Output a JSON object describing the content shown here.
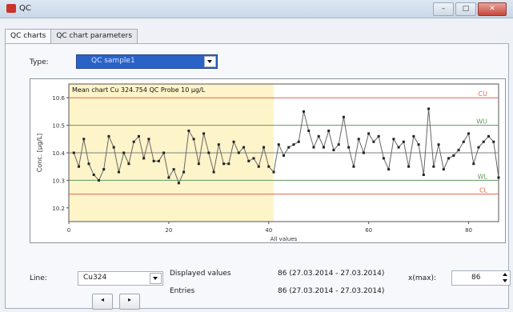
{
  "window": {
    "title": "QC"
  },
  "tabs": [
    {
      "label": "QC charts",
      "active": true
    },
    {
      "label": "QC chart parameters",
      "active": false
    }
  ],
  "type_field": {
    "label": "Type:",
    "value": "QC sample1"
  },
  "chart_data": {
    "type": "line",
    "title": "Mean chart Cu 324.754 QC Probe 10 µg/L",
    "xlabel": "All values",
    "ylabel": "Conc. [µg/L]",
    "xlim": [
      0,
      86
    ],
    "ylim": [
      10.15,
      10.65
    ],
    "x_ticks": [
      "0",
      "20",
      "40",
      "60",
      "80"
    ],
    "y_ticks": [
      "10.6",
      "10.5",
      "10.4",
      "10.3",
      "10.2"
    ],
    "y_tick_values": [
      10.6,
      10.5,
      10.4,
      10.3,
      10.2
    ],
    "highlight_region": {
      "x_from": 0,
      "x_to": 41,
      "color": "#fdf4c9"
    },
    "control_lines": [
      {
        "name": "CU",
        "value": 10.6,
        "color": "#e0654f"
      },
      {
        "name": "WU",
        "value": 10.5,
        "color": "#5e9a5e"
      },
      {
        "name": "",
        "value": 10.4,
        "color": "#808080"
      },
      {
        "name": "WL",
        "value": 10.3,
        "color": "#5e9a5e"
      },
      {
        "name": "CL",
        "value": 10.25,
        "color": "#e0654f"
      }
    ],
    "series": [
      {
        "values": [
          10.4,
          10.35,
          10.45,
          10.36,
          10.32,
          10.3,
          10.34,
          10.46,
          10.42,
          10.33,
          10.4,
          10.36,
          10.44,
          10.46,
          10.38,
          10.45,
          10.37,
          10.37,
          10.4,
          10.31,
          10.34,
          10.29,
          10.33,
          10.48,
          10.45,
          10.36,
          10.47,
          10.4,
          10.33,
          10.43,
          10.36,
          10.36,
          10.44,
          10.4,
          10.42,
          10.37,
          10.38,
          10.35,
          10.42,
          10.35,
          10.33,
          10.43,
          10.39,
          10.42,
          10.43,
          10.44,
          10.55,
          10.48,
          10.42,
          10.46,
          10.42,
          10.48,
          10.41,
          10.43,
          10.53,
          10.42,
          10.35,
          10.45,
          10.4,
          10.47,
          10.44,
          10.46,
          10.38,
          10.34,
          10.45,
          10.42,
          10.44,
          10.35,
          10.46,
          10.43,
          10.32,
          10.56,
          10.35,
          10.43,
          10.34,
          10.38,
          10.39,
          10.41,
          10.44,
          10.47,
          10.36,
          10.42,
          10.44,
          10.46,
          10.44,
          10.31
        ],
        "color": "#555555"
      }
    ]
  },
  "line_field": {
    "label": "Line:",
    "value": "Cu324"
  },
  "displayed": {
    "label": "Displayed values",
    "value": "86 (27.03.2014 - 27.03.2014)"
  },
  "entries": {
    "label": "Entries",
    "value": "86 (27.03.2014 - 27.03.2014)"
  },
  "xmax": {
    "label": "x(max):",
    "value": "86"
  },
  "nav": {
    "prev": "◂",
    "next": "▸"
  },
  "icons": {
    "minimize": "minimize-icon",
    "maximize": "maximize-icon",
    "close": "close-icon"
  }
}
